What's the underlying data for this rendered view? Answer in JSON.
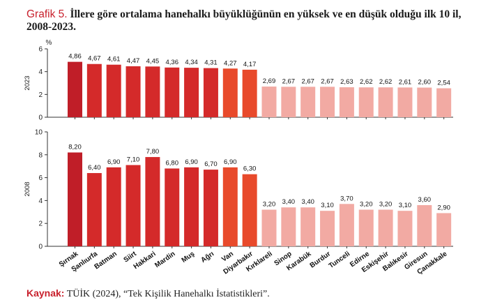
{
  "title_label": "Grafik 5.",
  "title_text": "İllere göre ortalama hanehalkı büyüklüğünün en yüksek ve en düşük olduğu ilk 10 il, 2008-2023.",
  "source_label": "Kaynak:",
  "source_text": "TÜİK (2024), “Tek Kişilik Hanehalkı İstatistikleri”.",
  "colors": {
    "high": "#d42a2a",
    "high_dark": "#c01e28",
    "high_light": "#e84a2b",
    "low": "#f2aaa3",
    "title_accent": "#c8202c"
  },
  "chart_data": [
    {
      "type": "bar",
      "ylabel": "2023",
      "unit": "%",
      "ylim": [
        0,
        6
      ],
      "yticks": [
        0,
        2,
        4,
        6
      ],
      "categories": [
        "Şırnak",
        "Şanlıurfa",
        "Batman",
        "Siirt",
        "Hakkari",
        "Mardin",
        "Muş",
        "Ağrı",
        "Van",
        "Diyarbakır",
        "Kırklareli",
        "Sinop",
        "Karabük",
        "Burdur",
        "Tunceli",
        "Edirne",
        "Eskişehir",
        "Balıkesir",
        "Giresun",
        "Çanakkale"
      ],
      "values": [
        4.86,
        4.67,
        4.61,
        4.47,
        4.45,
        4.36,
        4.34,
        4.31,
        4.27,
        4.17,
        2.69,
        2.67,
        2.67,
        2.67,
        2.63,
        2.62,
        2.62,
        2.61,
        2.6,
        2.54
      ],
      "labels": [
        "4,86",
        "4,67",
        "4,61",
        "4,47",
        "4,45",
        "4,36",
        "4,34",
        "4,31",
        "4,27",
        "4,17",
        "2,69",
        "2,67",
        "2,67",
        "2,67",
        "2,63",
        "2,62",
        "2,62",
        "2,61",
        "2,60",
        "2,54"
      ]
    },
    {
      "type": "bar",
      "ylabel": "2008",
      "ylim": [
        0,
        10
      ],
      "yticks": [
        0,
        2,
        4,
        6,
        8,
        10
      ],
      "categories": [
        "Şırnak",
        "Şanlıurfa",
        "Batman",
        "Siirt",
        "Hakkari",
        "Mardin",
        "Muş",
        "Ağrı",
        "Van",
        "Diyarbakır",
        "Kırklareli",
        "Sinop",
        "Karabük",
        "Burdur",
        "Tunceli",
        "Edirne",
        "Eskişehir",
        "Balıkesir",
        "Giresun",
        "Çanakkale"
      ],
      "values": [
        8.2,
        6.4,
        6.9,
        7.1,
        7.8,
        6.8,
        6.9,
        6.7,
        6.9,
        6.3,
        3.2,
        3.4,
        3.4,
        3.1,
        3.7,
        3.2,
        3.2,
        3.1,
        3.6,
        2.9
      ],
      "labels": [
        "8,20",
        "6,40",
        "6,90",
        "7,10",
        "7,80",
        "6,80",
        "6,90",
        "6,70",
        "6,90",
        "6,30",
        "3,20",
        "3,40",
        "3,40",
        "3,10",
        "3,70",
        "3,20",
        "3,20",
        "3,10",
        "3,60",
        "2,90"
      ]
    }
  ]
}
